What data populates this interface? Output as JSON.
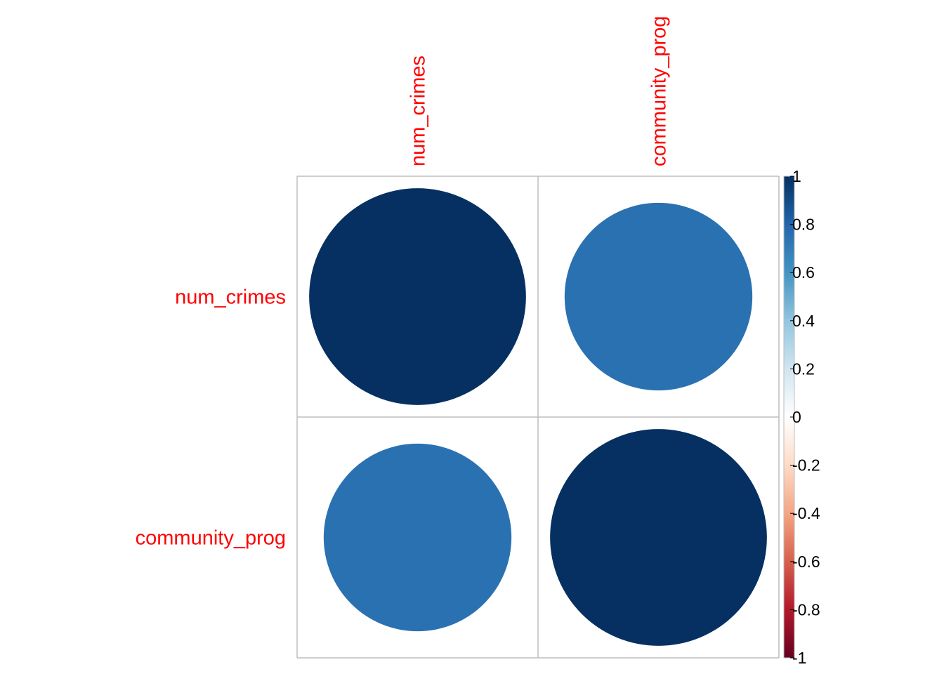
{
  "chart_data": {
    "type": "heatmap",
    "style": "circle correlation matrix",
    "variables": [
      "num_crimes",
      "community_prog"
    ],
    "matrix": [
      [
        1.0,
        0.75
      ],
      [
        0.75,
        1.0
      ]
    ],
    "value_range": [
      -1,
      1
    ],
    "label_color": "#FF0000",
    "grid": true,
    "legend": {
      "position": "right",
      "ticks": [
        "1",
        "0.8",
        "0.6",
        "0.4",
        "0.2",
        "0",
        "-0.2",
        "-0.4",
        "-0.6",
        "-0.8",
        "-1"
      ],
      "colors": [
        "#67001F",
        "#B2182B",
        "#D6604D",
        "#F4A582",
        "#FDDBC7",
        "#FFFFFF",
        "#D1E5F0",
        "#92C5DE",
        "#4393C3",
        "#2166AC",
        "#053061"
      ]
    }
  }
}
